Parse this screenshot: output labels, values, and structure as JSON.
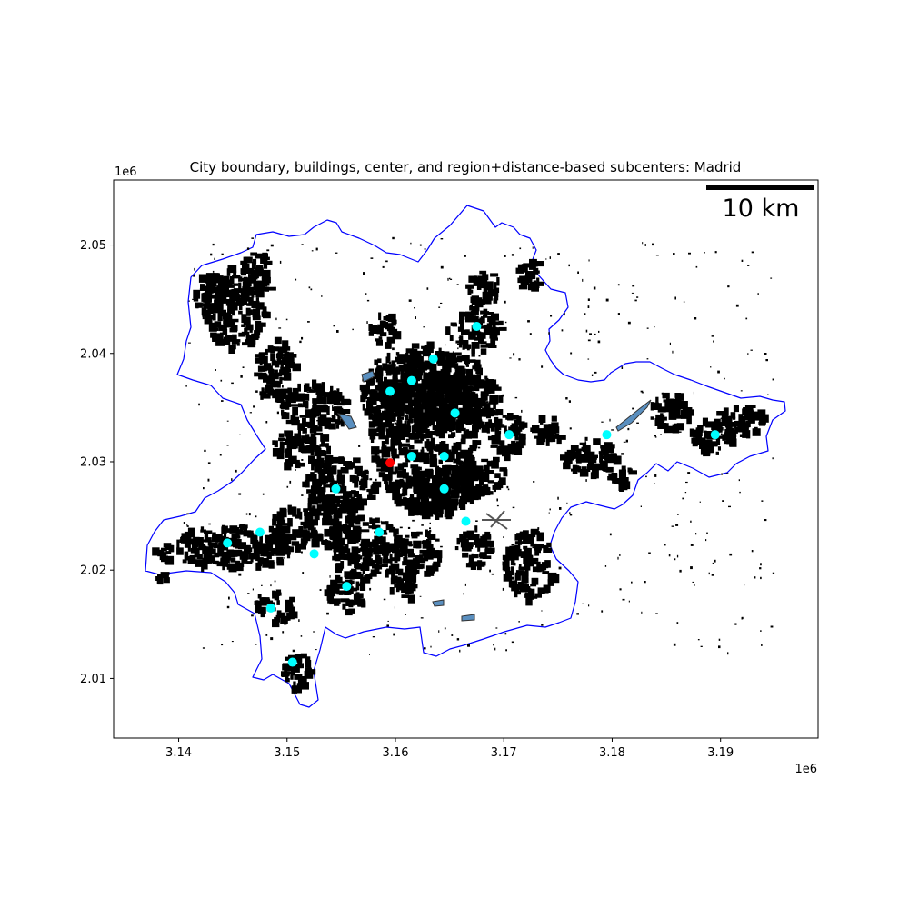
{
  "title": "City boundary, buildings, center, and region+distance-based subcenters: Madrid",
  "scalebar": {
    "label": "10 km"
  },
  "colors": {
    "boundary": "#0000ff",
    "buildings": "#000000",
    "center": "#ff0000",
    "subcenter": "#00ffff",
    "water": "#5a8fbf"
  },
  "chart_data": {
    "type": "scatter",
    "title": "City boundary, buildings, center, and region+distance-based subcenters: Madrid",
    "xlabel": "",
    "ylabel": "",
    "x_offset_label": "1e6",
    "y_offset_label": "1e6",
    "xlim": [
      3.134,
      3.199
    ],
    "ylim": [
      2.0045,
      2.056
    ],
    "xticks": [
      3.14,
      3.15,
      3.16,
      3.17,
      3.18,
      3.19
    ],
    "xtick_labels": [
      "3.14",
      "3.15",
      "3.16",
      "3.17",
      "3.18",
      "3.19"
    ],
    "yticks": [
      2.01,
      2.02,
      2.03,
      2.04,
      2.05
    ],
    "ytick_labels": [
      "2.01",
      "2.02",
      "2.03",
      "2.04",
      "2.05"
    ],
    "grid": false,
    "center": {
      "x": 3.1595,
      "y": 2.0299
    },
    "subcenters": [
      {
        "x": 3.1675,
        "y": 2.0425
      },
      {
        "x": 3.1635,
        "y": 2.0395
      },
      {
        "x": 3.1615,
        "y": 2.0375
      },
      {
        "x": 3.1595,
        "y": 2.0365
      },
      {
        "x": 3.1655,
        "y": 2.0345
      },
      {
        "x": 3.1705,
        "y": 2.0325
      },
      {
        "x": 3.1795,
        "y": 2.0325
      },
      {
        "x": 3.1895,
        "y": 2.0325
      },
      {
        "x": 3.1615,
        "y": 2.0305
      },
      {
        "x": 3.1645,
        "y": 2.0305
      },
      {
        "x": 3.1645,
        "y": 2.0275
      },
      {
        "x": 3.1545,
        "y": 2.0275
      },
      {
        "x": 3.1665,
        "y": 2.0245
      },
      {
        "x": 3.1585,
        "y": 2.0235
      },
      {
        "x": 3.1475,
        "y": 2.0235
      },
      {
        "x": 3.1445,
        "y": 2.0225
      },
      {
        "x": 3.1525,
        "y": 2.0215
      },
      {
        "x": 3.1555,
        "y": 2.0185
      },
      {
        "x": 3.1485,
        "y": 2.0165
      },
      {
        "x": 3.1505,
        "y": 2.0115
      }
    ]
  }
}
